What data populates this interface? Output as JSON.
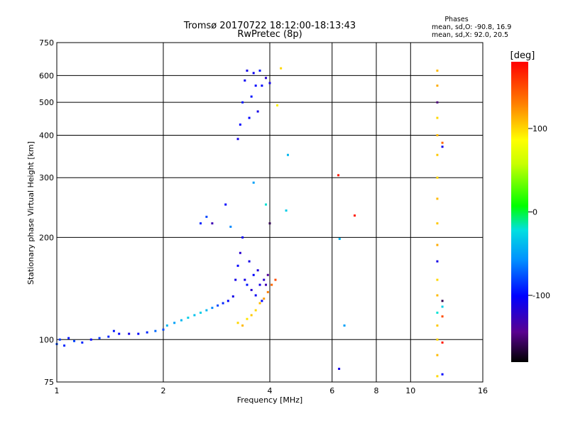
{
  "chart_data": {
    "type": "scatter",
    "title": "Tromsø 20170722 18:12:00-18:13:43",
    "subtitle": "RwPretec (8p)",
    "xlabel": "Frequency [MHz]",
    "ylabel": "Stationary phase Virtual Height [km]",
    "x_scale": "log",
    "y_scale": "log",
    "xlim": [
      1,
      16
    ],
    "ylim": [
      75,
      750
    ],
    "x_ticks": [
      1,
      2,
      4,
      6,
      8,
      10,
      16
    ],
    "x_tick_labels": [
      "1",
      "2",
      "4",
      "6",
      "8",
      "10",
      "16"
    ],
    "y_ticks": [
      75,
      100,
      200,
      300,
      400,
      500,
      600,
      750
    ],
    "y_tick_labels": [
      "75",
      "100",
      "200",
      "300",
      "400",
      "500",
      "600",
      "750"
    ],
    "grid": true,
    "grid_x": [
      2,
      4,
      6,
      8,
      10
    ],
    "grid_y": [
      100,
      200,
      300,
      400,
      500,
      600
    ],
    "phases_info": {
      "heading": "Phases",
      "line_o": "mean, sd,O: -90.8, 16.9",
      "line_x": "mean, sd,X: 92.0, 20.5"
    },
    "colorbar": {
      "label": "[deg]",
      "min": -180,
      "max": 180,
      "ticks": [
        100,
        0,
        -100
      ],
      "tick_labels": [
        "100",
        "0",
        "-100"
      ]
    },
    "points": {
      "bottom_trace": [
        [
          1.0,
          97,
          -80
        ],
        [
          1.02,
          100,
          -85
        ],
        [
          1.05,
          96,
          -90
        ],
        [
          1.08,
          101,
          -95
        ],
        [
          1.12,
          99,
          -80
        ],
        [
          1.18,
          98,
          -90
        ],
        [
          1.25,
          100,
          -100
        ],
        [
          1.32,
          101,
          -85
        ],
        [
          1.4,
          102,
          -90
        ],
        [
          1.45,
          106,
          -95
        ],
        [
          1.5,
          104,
          -100
        ],
        [
          1.6,
          104,
          -110
        ],
        [
          1.7,
          104,
          -100
        ],
        [
          1.8,
          105,
          -90
        ],
        [
          1.9,
          106,
          -70
        ],
        [
          2.0,
          107,
          -80
        ],
        [
          2.05,
          110,
          -40
        ],
        [
          2.15,
          112,
          -50
        ],
        [
          2.25,
          114,
          -40
        ],
        [
          2.35,
          116,
          -30
        ],
        [
          2.45,
          118,
          -35
        ],
        [
          2.55,
          120,
          -30
        ],
        [
          2.65,
          122,
          -40
        ],
        [
          2.75,
          124,
          -60
        ],
        [
          2.85,
          126,
          -80
        ],
        [
          2.95,
          128,
          -90
        ],
        [
          3.05,
          130,
          -100
        ],
        [
          3.15,
          134,
          -110
        ]
      ],
      "o_trace": [
        [
          3.2,
          150,
          -110
        ],
        [
          3.25,
          165,
          -100
        ],
        [
          3.3,
          180,
          -120
        ],
        [
          3.35,
          200,
          -105
        ],
        [
          3.4,
          150,
          -110
        ],
        [
          3.45,
          145,
          -95
        ],
        [
          3.5,
          170,
          -110
        ],
        [
          3.55,
          140,
          -120
        ],
        [
          3.6,
          155,
          -100
        ],
        [
          3.65,
          135,
          -105
        ],
        [
          3.7,
          160,
          -115
        ],
        [
          3.75,
          145,
          -110
        ],
        [
          3.8,
          130,
          -100
        ],
        [
          3.85,
          150,
          -120
        ],
        [
          3.9,
          145,
          -130
        ],
        [
          3.95,
          155,
          -140
        ],
        [
          4.0,
          220,
          -160
        ]
      ],
      "x_trace": [
        [
          3.25,
          112,
          100
        ],
        [
          3.35,
          110,
          110
        ],
        [
          3.45,
          115,
          95
        ],
        [
          3.55,
          118,
          105
        ],
        [
          3.65,
          122,
          100
        ],
        [
          3.75,
          128,
          110
        ],
        [
          3.85,
          132,
          120
        ],
        [
          3.95,
          138,
          130
        ],
        [
          4.05,
          145,
          140
        ],
        [
          4.15,
          150,
          150
        ]
      ],
      "f_layer": [
        [
          3.25,
          390,
          -110
        ],
        [
          3.3,
          430,
          -100
        ],
        [
          3.35,
          500,
          -95
        ],
        [
          3.4,
          580,
          -105
        ],
        [
          3.45,
          620,
          -110
        ],
        [
          3.5,
          450,
          -100
        ],
        [
          3.55,
          520,
          -95
        ],
        [
          3.6,
          610,
          -105
        ],
        [
          3.65,
          560,
          -100
        ],
        [
          3.7,
          470,
          -110
        ],
        [
          3.75,
          620,
          -95
        ],
        [
          3.8,
          560,
          -100
        ],
        [
          3.9,
          590,
          -120
        ],
        [
          4.0,
          570,
          -110
        ],
        [
          4.2,
          490,
          90
        ],
        [
          4.3,
          630,
          100
        ],
        [
          4.5,
          350,
          -40
        ]
      ],
      "scattered": [
        [
          2.55,
          220,
          -90
        ],
        [
          2.65,
          230,
          -80
        ],
        [
          2.75,
          220,
          -130
        ],
        [
          3.0,
          250,
          -100
        ],
        [
          3.1,
          215,
          -60
        ],
        [
          3.6,
          290,
          -50
        ],
        [
          3.9,
          250,
          -20
        ],
        [
          4.45,
          240,
          -30
        ],
        [
          6.25,
          305,
          170
        ],
        [
          6.3,
          198,
          -40
        ],
        [
          6.5,
          110,
          -50
        ],
        [
          6.95,
          232,
          170
        ],
        [
          6.28,
          82,
          -110
        ]
      ],
      "x_column": [
        [
          11.9,
          620,
          110
        ],
        [
          11.9,
          560,
          115
        ],
        [
          11.9,
          500,
          -150
        ],
        [
          11.9,
          450,
          100
        ],
        [
          11.9,
          400,
          110
        ],
        [
          11.9,
          350,
          105
        ],
        [
          11.9,
          300,
          100
        ],
        [
          11.9,
          260,
          110
        ],
        [
          11.9,
          220,
          105
        ],
        [
          11.9,
          190,
          115
        ],
        [
          11.9,
          170,
          -110
        ],
        [
          11.9,
          150,
          100
        ],
        [
          11.9,
          135,
          110
        ],
        [
          11.9,
          120,
          -20
        ],
        [
          11.9,
          110,
          105
        ],
        [
          11.9,
          100,
          100
        ],
        [
          11.9,
          90,
          110
        ],
        [
          11.9,
          78,
          100
        ],
        [
          12.3,
          380,
          140
        ],
        [
          12.3,
          370,
          -110
        ],
        [
          12.3,
          130,
          -160
        ],
        [
          12.3,
          125,
          -30
        ],
        [
          12.3,
          117,
          150
        ],
        [
          12.3,
          98,
          170
        ],
        [
          12.3,
          79,
          -100
        ]
      ]
    }
  }
}
